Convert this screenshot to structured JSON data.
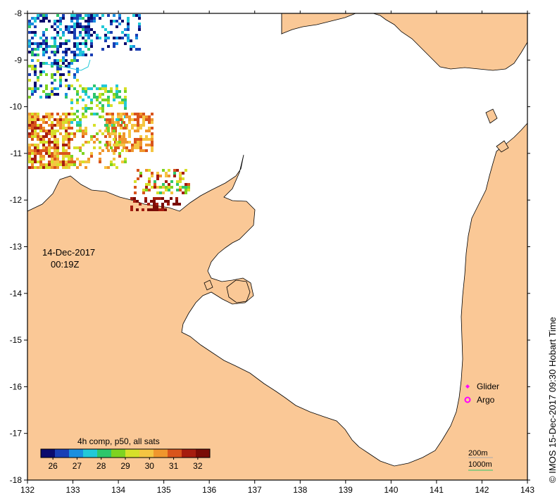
{
  "map": {
    "lon_range": [
      132,
      143
    ],
    "lat_range": [
      -18,
      -8
    ],
    "lon_ticks": [
      "132",
      "133",
      "134",
      "135",
      "136",
      "137",
      "138",
      "139",
      "140",
      "141",
      "142",
      "143"
    ],
    "lat_ticks": [
      "-8",
      "-9",
      "-10",
      "-11",
      "-12",
      "-13",
      "-14",
      "-15",
      "-16",
      "-17",
      "-18"
    ],
    "land_color": "#fac896",
    "water_color": "#ffffff"
  },
  "date_label": {
    "date": "14-Dec-2017",
    "time": "00:19Z"
  },
  "colorbar": {
    "title": "4h comp, p50, all sats",
    "ticks": [
      "26",
      "27",
      "28",
      "29",
      "30",
      "31",
      "32"
    ],
    "range": [
      25.5,
      32.5
    ],
    "colors": [
      "#0b0b6e",
      "#1a3fb5",
      "#1a8fe0",
      "#22c9d8",
      "#2fc66b",
      "#7ed321",
      "#d6e02a",
      "#f5c542",
      "#f0962d",
      "#d9541c",
      "#a61d0f",
      "#7a0c06"
    ]
  },
  "legend": {
    "glider_label": "Glider",
    "argo_label": "Argo",
    "glider_color": "#ff00ff",
    "argo_color": "#ff00ff"
  },
  "scale": {
    "label_200": "200m",
    "label_1000": "1000m"
  },
  "credit": "IMOS 15-Dec-2017 09:30 Hobart Time",
  "copyright_symbol": "©"
}
